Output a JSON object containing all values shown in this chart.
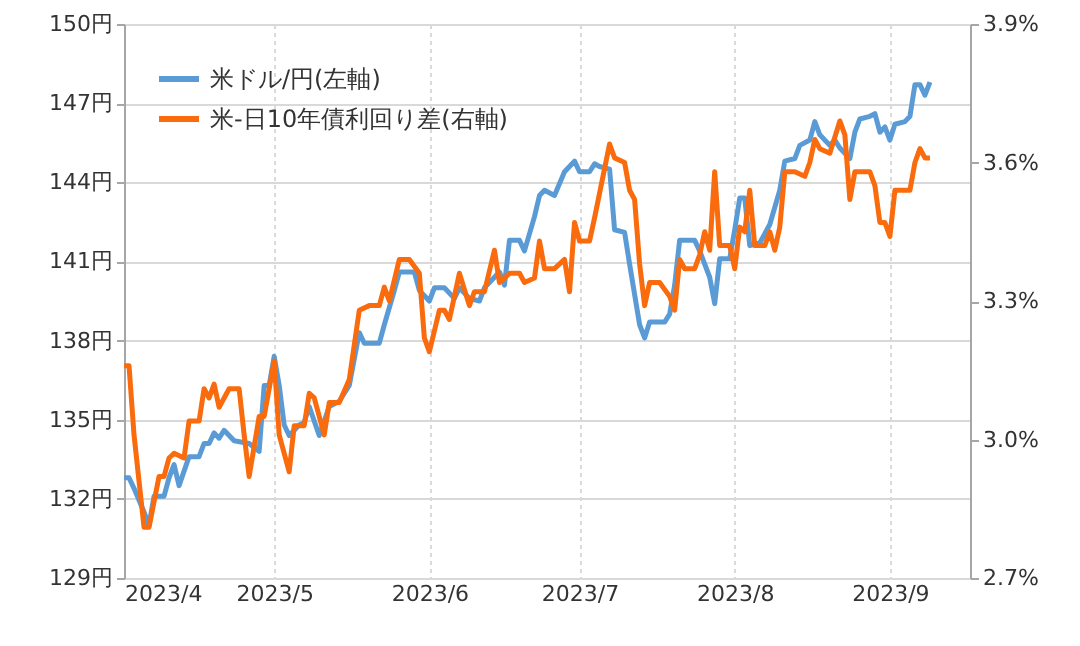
{
  "chart_data": {
    "type": "line",
    "legend": "top left",
    "grid": true,
    "xlim": [
      "2023-04-01",
      "2023-09-17"
    ],
    "xticks": [
      {
        "value": "2023-04-01",
        "label": "2023/4"
      },
      {
        "value": "2023-05-01",
        "label": "2023/5"
      },
      {
        "value": "2023-06-01",
        "label": "2023/6"
      },
      {
        "value": "2023-07-01",
        "label": "2023/7"
      },
      {
        "value": "2023-08-01",
        "label": "2023/8"
      },
      {
        "value": "2023-09-01",
        "label": "2023/9"
      }
    ],
    "ylim": [
      129,
      150
    ],
    "yticks": [
      {
        "value": 129,
        "label": "129円"
      },
      {
        "value": 132,
        "label": "132円"
      },
      {
        "value": 135,
        "label": "135円"
      },
      {
        "value": 138,
        "label": "138円"
      },
      {
        "value": 141,
        "label": "141円"
      },
      {
        "value": 144,
        "label": "144円"
      },
      {
        "value": 147,
        "label": "147円"
      },
      {
        "value": 150,
        "label": "150円"
      }
    ],
    "y2lim": [
      2.7,
      3.9
    ],
    "y2ticks": [
      {
        "value": 2.7,
        "label": "2.7%"
      },
      {
        "value": 3.0,
        "label": "3.0%"
      },
      {
        "value": 3.3,
        "label": "3.3%"
      },
      {
        "value": 3.6,
        "label": "3.6%"
      },
      {
        "value": 3.9,
        "label": "3.9%"
      }
    ],
    "series": [
      {
        "name": "米ドル/円(左軸)",
        "color": "#5b9bd5",
        "x": [
          "2023-04-01",
          "2023-04-02",
          "2023-04-03",
          "2023-04-05",
          "2023-04-06",
          "2023-04-07",
          "2023-04-09",
          "2023-04-10",
          "2023-04-11",
          "2023-04-12",
          "2023-04-14",
          "2023-04-16",
          "2023-04-17",
          "2023-04-18",
          "2023-04-19",
          "2023-04-20",
          "2023-04-21",
          "2023-04-23",
          "2023-04-26",
          "2023-04-28",
          "2023-04-29",
          "2023-04-30",
          "2023-05-01",
          "2023-05-02",
          "2023-05-03",
          "2023-05-04",
          "2023-05-06",
          "2023-05-07",
          "2023-05-08",
          "2023-05-10",
          "2023-05-12",
          "2023-05-14",
          "2023-05-16",
          "2023-05-18",
          "2023-05-19",
          "2023-05-22",
          "2023-05-23",
          "2023-05-25",
          "2023-05-26",
          "2023-05-29",
          "2023-05-30",
          "2023-06-01",
          "2023-06-02",
          "2023-06-04",
          "2023-06-06",
          "2023-06-07",
          "2023-06-09",
          "2023-06-11",
          "2023-06-12",
          "2023-06-15",
          "2023-06-16",
          "2023-06-17",
          "2023-06-19",
          "2023-06-20",
          "2023-06-22",
          "2023-06-23",
          "2023-06-24",
          "2023-06-26",
          "2023-06-28",
          "2023-06-30",
          "2023-07-01",
          "2023-07-03",
          "2023-07-04",
          "2023-07-05",
          "2023-07-07",
          "2023-07-08",
          "2023-07-10",
          "2023-07-11",
          "2023-07-13",
          "2023-07-14",
          "2023-07-15",
          "2023-07-18",
          "2023-07-19",
          "2023-07-20",
          "2023-07-21",
          "2023-07-24",
          "2023-07-25",
          "2023-07-27",
          "2023-07-28",
          "2023-07-29",
          "2023-07-31",
          "2023-08-01",
          "2023-08-02",
          "2023-08-03",
          "2023-08-04",
          "2023-08-06",
          "2023-08-08",
          "2023-08-10",
          "2023-08-11",
          "2023-08-13",
          "2023-08-14",
          "2023-08-16",
          "2023-08-17",
          "2023-08-18",
          "2023-08-20",
          "2023-08-21",
          "2023-08-22",
          "2023-08-24",
          "2023-08-25",
          "2023-08-26",
          "2023-08-28",
          "2023-08-29",
          "2023-08-30",
          "2023-08-31",
          "2023-09-01",
          "2023-09-02",
          "2023-09-04",
          "2023-09-05",
          "2023-09-06",
          "2023-09-07",
          "2023-09-08",
          "2023-09-09"
        ],
        "values": [
          132.8,
          132.8,
          132.4,
          131.5,
          131.0,
          132.1,
          132.1,
          132.8,
          133.3,
          132.5,
          133.6,
          133.6,
          134.1,
          134.1,
          134.5,
          134.3,
          134.6,
          134.2,
          134.1,
          133.8,
          136.3,
          136.3,
          137.4,
          136.3,
          134.8,
          134.4,
          134.8,
          134.9,
          135.5,
          134.4,
          135.5,
          135.7,
          136.3,
          138.3,
          137.9,
          137.9,
          138.6,
          139.9,
          140.6,
          140.6,
          139.9,
          139.5,
          140.0,
          140.0,
          139.6,
          140.0,
          139.6,
          139.5,
          140.0,
          140.6,
          140.1,
          141.8,
          141.8,
          141.4,
          142.7,
          143.5,
          143.7,
          143.5,
          144.4,
          144.8,
          144.4,
          144.4,
          144.7,
          144.6,
          144.5,
          142.2,
          142.1,
          140.9,
          138.6,
          138.1,
          138.7,
          138.7,
          139.0,
          140.1,
          141.8,
          141.8,
          141.4,
          140.4,
          139.4,
          141.1,
          141.1,
          142.2,
          143.4,
          143.4,
          141.6,
          141.7,
          142.4,
          143.7,
          144.8,
          144.9,
          145.4,
          145.6,
          146.3,
          145.8,
          145.4,
          145.6,
          145.3,
          144.9,
          145.9,
          146.4,
          146.5,
          146.6,
          145.9,
          146.1,
          145.6,
          146.2,
          146.3,
          146.5,
          147.7,
          147.7,
          147.3,
          147.8
        ]
      },
      {
        "name": "米-日10年債利回り差(右軸)",
        "color": "#f96b0c",
        "axis": "y2",
        "x": [
          "2023-04-01",
          "2023-04-02",
          "2023-04-03",
          "2023-04-05",
          "2023-04-06",
          "2023-04-08",
          "2023-04-09",
          "2023-04-10",
          "2023-04-11",
          "2023-04-13",
          "2023-04-14",
          "2023-04-16",
          "2023-04-17",
          "2023-04-18",
          "2023-04-19",
          "2023-04-20",
          "2023-04-22",
          "2023-04-24",
          "2023-04-25",
          "2023-04-26",
          "2023-04-28",
          "2023-04-29",
          "2023-05-01",
          "2023-05-02",
          "2023-05-04",
          "2023-05-05",
          "2023-05-07",
          "2023-05-08",
          "2023-05-09",
          "2023-05-11",
          "2023-05-12",
          "2023-05-14",
          "2023-05-16",
          "2023-05-18",
          "2023-05-20",
          "2023-05-22",
          "2023-05-23",
          "2023-05-24",
          "2023-05-26",
          "2023-05-28",
          "2023-05-30",
          "2023-05-31",
          "2023-06-01",
          "2023-06-03",
          "2023-06-04",
          "2023-06-05",
          "2023-06-07",
          "2023-06-09",
          "2023-06-10",
          "2023-06-12",
          "2023-06-14",
          "2023-06-15",
          "2023-06-17",
          "2023-06-19",
          "2023-06-20",
          "2023-06-22",
          "2023-06-23",
          "2023-06-24",
          "2023-06-26",
          "2023-06-28",
          "2023-06-29",
          "2023-06-30",
          "2023-07-01",
          "2023-07-03",
          "2023-07-04",
          "2023-07-07",
          "2023-07-08",
          "2023-07-10",
          "2023-07-11",
          "2023-07-12",
          "2023-07-13",
          "2023-07-14",
          "2023-07-15",
          "2023-07-17",
          "2023-07-19",
          "2023-07-20",
          "2023-07-21",
          "2023-07-22",
          "2023-07-24",
          "2023-07-25",
          "2023-07-26",
          "2023-07-27",
          "2023-07-28",
          "2023-07-29",
          "2023-07-30",
          "2023-07-31",
          "2023-08-01",
          "2023-08-02",
          "2023-08-03",
          "2023-08-04",
          "2023-08-05",
          "2023-08-07",
          "2023-08-08",
          "2023-08-09",
          "2023-08-10",
          "2023-08-11",
          "2023-08-13",
          "2023-08-15",
          "2023-08-16",
          "2023-08-17",
          "2023-08-18",
          "2023-08-20",
          "2023-08-22",
          "2023-08-23",
          "2023-08-24",
          "2023-08-25",
          "2023-08-28",
          "2023-08-29",
          "2023-08-30",
          "2023-08-31",
          "2023-09-01",
          "2023-09-02",
          "2023-09-05",
          "2023-09-06",
          "2023-09-07",
          "2023-09-08",
          "2023-09-09"
        ],
        "values": [
          3.16,
          3.16,
          3.01,
          2.81,
          2.81,
          2.92,
          2.92,
          2.96,
          2.97,
          2.96,
          3.04,
          3.04,
          3.11,
          3.09,
          3.12,
          3.07,
          3.11,
          3.11,
          3.01,
          2.92,
          3.05,
          3.05,
          3.17,
          3.01,
          2.93,
          3.03,
          3.03,
          3.1,
          3.09,
          3.01,
          3.08,
          3.08,
          3.13,
          3.28,
          3.29,
          3.29,
          3.33,
          3.3,
          3.39,
          3.39,
          3.36,
          3.22,
          3.19,
          3.28,
          3.28,
          3.26,
          3.36,
          3.29,
          3.32,
          3.32,
          3.41,
          3.34,
          3.36,
          3.36,
          3.34,
          3.35,
          3.43,
          3.37,
          3.37,
          3.39,
          3.32,
          3.47,
          3.43,
          3.43,
          3.48,
          3.64,
          3.61,
          3.6,
          3.54,
          3.52,
          3.38,
          3.29,
          3.34,
          3.34,
          3.31,
          3.28,
          3.39,
          3.37,
          3.37,
          3.4,
          3.45,
          3.41,
          3.58,
          3.42,
          3.42,
          3.42,
          3.37,
          3.46,
          3.45,
          3.54,
          3.42,
          3.42,
          3.45,
          3.41,
          3.46,
          3.58,
          3.58,
          3.57,
          3.6,
          3.65,
          3.63,
          3.62,
          3.69,
          3.66,
          3.52,
          3.58,
          3.58,
          3.55,
          3.47,
          3.47,
          3.44,
          3.54,
          3.54,
          3.6,
          3.63,
          3.61,
          3.61
        ]
      }
    ]
  }
}
